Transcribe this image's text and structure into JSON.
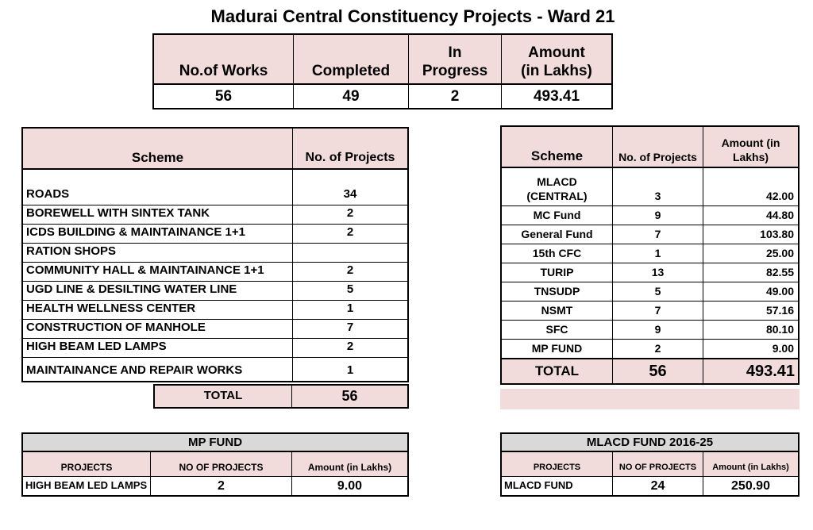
{
  "page_title": "Madurai Central Constituency Projects - Ward 21",
  "colors": {
    "header_pink": "#F2DCDB",
    "title_gray": "#D9D9D9",
    "border": "#000000"
  },
  "summary_table": {
    "headers": [
      "No.of Works",
      "Completed",
      "In\nProgress",
      "Amount\n(in Lakhs)"
    ],
    "values": [
      "56",
      "49",
      "2",
      "493.41"
    ]
  },
  "scheme_projects_table": {
    "headers": [
      "Scheme",
      "No. of Projects"
    ],
    "rows": [
      [
        "ROADS",
        "34"
      ],
      [
        "BOREWELL WITH SINTEX TANK",
        "2"
      ],
      [
        "ICDS BUILDING & MAINTAINANCE 1+1",
        "2"
      ],
      [
        "RATION SHOPS",
        ""
      ],
      [
        "COMMUNITY HALL & MAINTAINANCE 1+1",
        "2"
      ],
      [
        "UGD LINE & DESILTING WATER LINE",
        "5"
      ],
      [
        "HEALTH WELLNESS CENTER",
        "1"
      ],
      [
        "CONSTRUCTION OF MANHOLE",
        "7"
      ],
      [
        "HIGH BEAM LED LAMPS",
        "2"
      ],
      [
        "MAINTAINANCE AND REPAIR WORKS",
        "1"
      ]
    ],
    "total_label": "TOTAL",
    "total_value": "56"
  },
  "scheme_amount_table": {
    "headers": [
      "Scheme",
      "No. of Projects",
      "Amount (in\nLakhs)"
    ],
    "rows": [
      [
        "MLACD\n(CENTRAL)",
        "3",
        "42.00"
      ],
      [
        "MC Fund",
        "9",
        "44.80"
      ],
      [
        "General Fund",
        "7",
        "103.80"
      ],
      [
        "15th CFC",
        "1",
        "25.00"
      ],
      [
        "TURIP",
        "13",
        "82.55"
      ],
      [
        "TNSUDP",
        "5",
        "49.00"
      ],
      [
        "NSMT",
        "7",
        "57.16"
      ],
      [
        "SFC",
        "9",
        "80.10"
      ],
      [
        "MP FUND",
        "2",
        "9.00"
      ]
    ],
    "total_label": "TOTAL",
    "total_values": [
      "56",
      "493.41"
    ]
  },
  "mp_fund_table": {
    "title": "MP FUND",
    "headers": [
      "PROJECTS",
      "NO OF PROJECTS",
      "Amount (in Lakhs)"
    ],
    "rows": [
      [
        "HIGH BEAM LED LAMPS",
        "2",
        "9.00"
      ]
    ]
  },
  "mlacd_fund_table": {
    "title": "MLACD FUND 2016-25",
    "headers": [
      "PROJECTS",
      "NO OF PROJECTS",
      "Amount (in Lakhs)"
    ],
    "rows": [
      [
        "MLACD FUND",
        "24",
        "250.90"
      ]
    ]
  }
}
